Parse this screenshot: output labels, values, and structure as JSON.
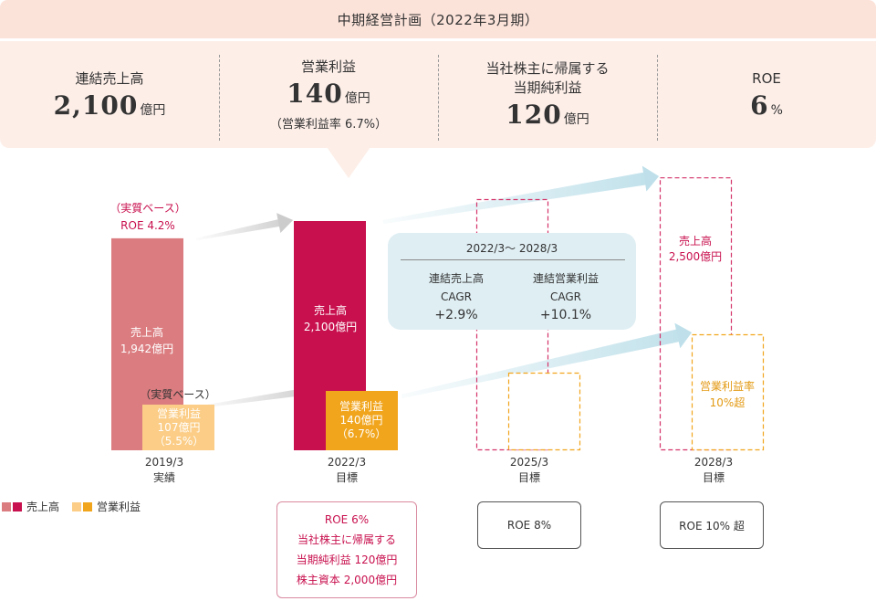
{
  "plan": {
    "title": "中期経営計画（2022年3月期）",
    "kpis": [
      {
        "label": "連結売上高",
        "value": "2,100",
        "unit": "億円",
        "note": ""
      },
      {
        "label": "営業利益",
        "value": "140",
        "unit": "億円",
        "note": "（営業利益率 6.7%）"
      },
      {
        "label": "当社株主に帰属する\n当期純利益",
        "value": "120",
        "unit": "億円",
        "note": ""
      },
      {
        "label": "ROE",
        "value": "6",
        "unit": "%",
        "note": ""
      }
    ]
  },
  "colors": {
    "sales_actual": "#db7d80",
    "sales_target": "#c8104e",
    "op_actual": "#fbcd86",
    "op_target": "#f1a51d",
    "arrow_gray": "#cccccc",
    "arrow_blue": "#bfe0ea",
    "cagr_bg": "#dfeef3",
    "header_bg": "#fdeee8"
  },
  "chart_data": {
    "type": "bar",
    "categories": [
      "2019/3",
      "2022/3",
      "2025/3",
      "2028/3"
    ],
    "category_sublabels": [
      "実績",
      "目標",
      "目標",
      "目標"
    ],
    "series": [
      {
        "name": "売上高",
        "values": [
          1942,
          2100,
          null,
          2500
        ],
        "unit": "億円"
      },
      {
        "name": "営業利益",
        "values": [
          107,
          140,
          null,
          null
        ],
        "unit": "億円"
      }
    ],
    "labels": {
      "sales": [
        "売上高\n1,942億円",
        "売上高\n2,100億円",
        "",
        "売上高\n2,500億円"
      ],
      "op": [
        "営業利益\n107億円\n（5.5%）",
        "営業利益\n140億円\n（6.7%）",
        "",
        "営業利益率\n10%超"
      ]
    },
    "annotations": {
      "roe_2019_base": "（実質ベース）",
      "roe_2019": "ROE 4.2%",
      "op_2019_base": "（実質ベース）"
    },
    "legend": [
      "売上高",
      "営業利益"
    ]
  },
  "cagr": {
    "title": "2022/3〜 2028/3",
    "items": [
      {
        "label": "連結売上高",
        "sub": "CAGR",
        "value": "+2.9%"
      },
      {
        "label": "連結営業利益",
        "sub": "CAGR",
        "value": "+10.1%"
      }
    ]
  },
  "targets": {
    "fy2022": [
      "ROE 6%",
      "当社株主に帰属する",
      "当期純利益 120億円",
      "株主資本 2,000億円"
    ],
    "fy2025": "ROE 8%",
    "fy2028": "ROE 10% 超"
  }
}
